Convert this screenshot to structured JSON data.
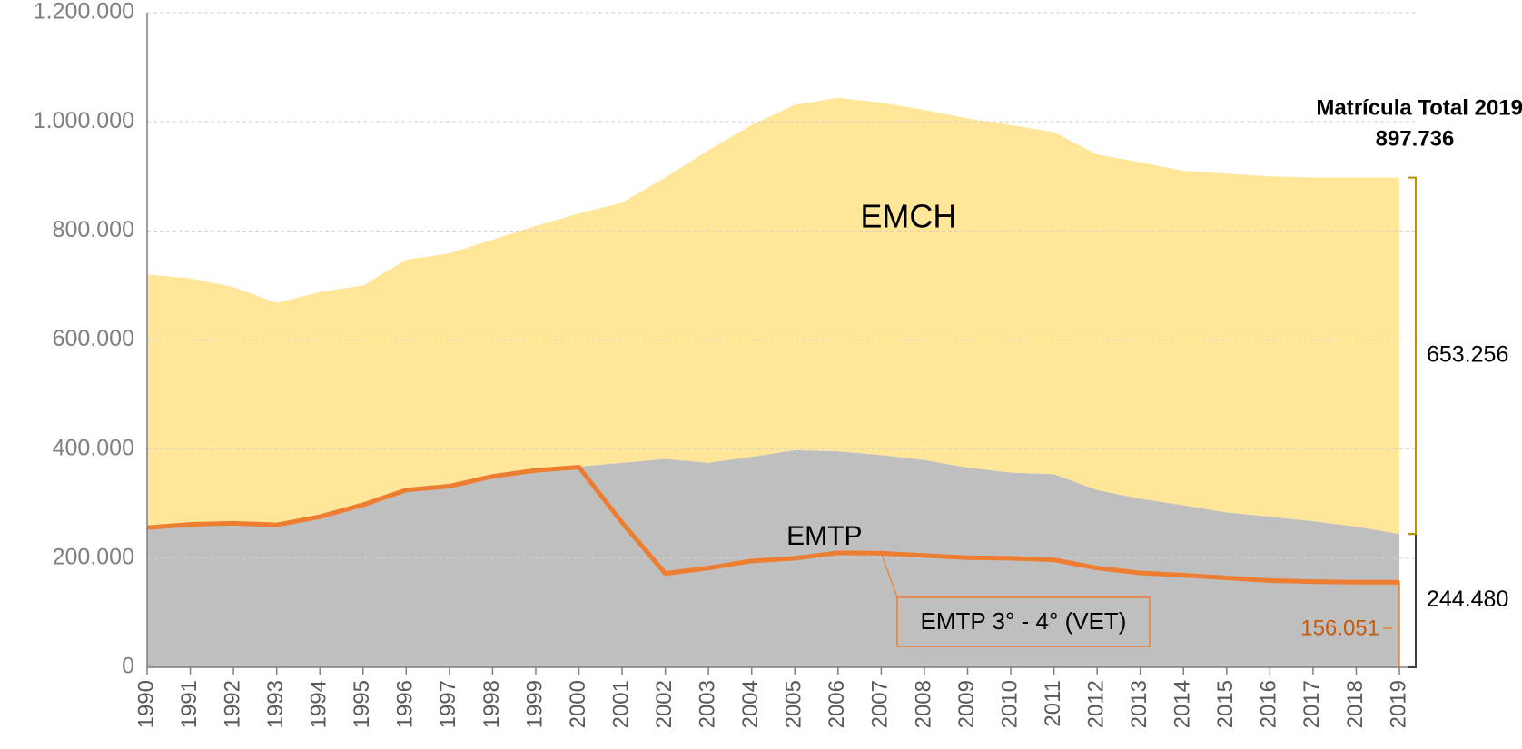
{
  "chart_data": {
    "type": "area",
    "stacked": true,
    "categories": [
      "1990",
      "1991",
      "1992",
      "1993",
      "1994",
      "1995",
      "1996",
      "1997",
      "1998",
      "1999",
      "2000",
      "2001",
      "2002",
      "2003",
      "2004",
      "2005",
      "2006",
      "2007",
      "2008",
      "2009",
      "2010",
      "2011",
      "2012",
      "2013",
      "2014",
      "2015",
      "2016",
      "2017",
      "2018",
      "2019"
    ],
    "series": [
      {
        "name": "EMTP",
        "color": "#bfbfbf",
        "bracket_color": "#404040",
        "values": [
          256000,
          263000,
          265000,
          261000,
          276000,
          299000,
          325000,
          334000,
          352000,
          363000,
          368000,
          375000,
          382000,
          375000,
          386000,
          398000,
          396000,
          389000,
          380000,
          366000,
          357000,
          354000,
          325000,
          309000,
          297000,
          284000,
          276000,
          268000,
          258000,
          244480
        ],
        "value_labels": [
          null,
          null,
          null,
          null,
          null,
          null,
          null,
          null,
          null,
          null,
          null,
          null,
          null,
          null,
          null,
          null,
          null,
          null,
          null,
          null,
          null,
          null,
          null,
          null,
          null,
          null,
          null,
          null,
          null,
          "244.480"
        ]
      },
      {
        "name": "EMCH",
        "color": "#ffe699",
        "bracket_color": "#bf9000",
        "values": [
          464000,
          450000,
          432000,
          407000,
          412000,
          401000,
          422000,
          425000,
          432000,
          446000,
          464000,
          477000,
          516000,
          573000,
          608000,
          633000,
          648000,
          646000,
          642000,
          640000,
          637000,
          627000,
          615000,
          617000,
          613000,
          621000,
          624000,
          630000,
          640000,
          653256
        ],
        "value_labels": [
          null,
          null,
          null,
          null,
          null,
          null,
          null,
          null,
          null,
          null,
          null,
          null,
          null,
          null,
          null,
          null,
          null,
          null,
          null,
          null,
          null,
          null,
          null,
          null,
          null,
          null,
          null,
          null,
          null,
          "653.256"
        ]
      },
      {
        "name": "EMTP 3° - 4° (VET)",
        "type": "line",
        "color": "#ed7d31",
        "values": [
          256000,
          262000,
          264000,
          261000,
          276000,
          298000,
          325000,
          332000,
          350000,
          361000,
          367000,
          265000,
          172000,
          182000,
          195000,
          200000,
          210000,
          209000,
          205000,
          201000,
          200000,
          197000,
          182000,
          173000,
          169000,
          164000,
          159000,
          157000,
          156000,
          156051
        ],
        "value_labels": [
          null,
          null,
          null,
          null,
          null,
          null,
          null,
          null,
          null,
          null,
          null,
          null,
          null,
          null,
          null,
          null,
          null,
          null,
          null,
          null,
          null,
          null,
          null,
          null,
          null,
          null,
          null,
          null,
          null,
          "156.051"
        ]
      }
    ],
    "annotation": {
      "text": "Matrícula Total 2019",
      "value": 897736,
      "label": "897.736"
    },
    "ylim": [
      0,
      1200000
    ],
    "yticks": [
      0,
      {
        "value": 200000,
        "label": "200.000"
      },
      {
        "value": 400000,
        "label": "400.000"
      },
      {
        "value": 600000,
        "label": "600.000"
      },
      {
        "value": 800000,
        "label": "800.000"
      },
      {
        "value": 1000000,
        "label": "1.000.000"
      },
      {
        "value": 1200000,
        "label": "1.200.000"
      }
    ],
    "grid": true
  }
}
